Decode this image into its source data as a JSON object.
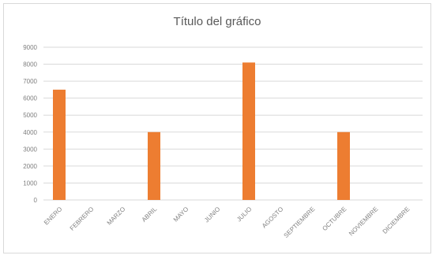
{
  "chart_data": {
    "type": "bar",
    "title": "Título del gráfico",
    "categories": [
      "ENERO",
      "FEBRERO",
      "MARZO",
      "ABRIL",
      "MAYO",
      "JUNIO",
      "JULIO",
      "AGOSTO",
      "SEPTIEMBRE",
      "OCTUBRE",
      "NOVIEMBRE",
      "DICIEMBRE"
    ],
    "values": [
      6500,
      0,
      0,
      4000,
      0,
      0,
      8100,
      0,
      0,
      4000,
      0,
      0
    ],
    "yticks": [
      "0",
      "1000",
      "2000",
      "3000",
      "4000",
      "5000",
      "6000",
      "7000",
      "8000",
      "9000"
    ],
    "ylim": [
      0,
      9000
    ],
    "xlabel": "",
    "ylabel": "",
    "grid": true,
    "legend": "none",
    "bar_color": "#ed7d31",
    "grid_color": "#d9d9d9",
    "text_color": "#595959"
  }
}
